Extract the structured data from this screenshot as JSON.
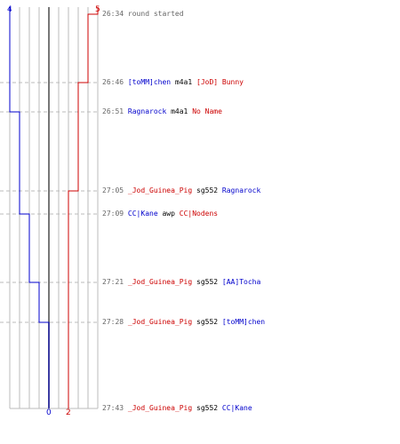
{
  "colors": {
    "blue_team": "#0000cc",
    "red_team": "#cc0000",
    "grid": "#bbbbbb",
    "center": "#777777",
    "dash": "#bbbbbb",
    "time": "#666666",
    "weapon": "#000000"
  },
  "scores": {
    "blue_start": "4",
    "red_start": "5",
    "blue_end": "0",
    "red_end": "2"
  },
  "events": [
    {
      "time": "26:34",
      "kind": "note",
      "text": "round started"
    },
    {
      "time": "26:46",
      "kind": "kill",
      "killer": "[toMM]chen",
      "killer_team": "blue",
      "weapon": "m4a1",
      "victim": "[JoD] Bunny",
      "victim_team": "red"
    },
    {
      "time": "26:51",
      "kind": "kill",
      "killer": "Ragnarock",
      "killer_team": "blue",
      "weapon": "m4a1",
      "victim": "No Name",
      "victim_team": "red"
    },
    {
      "time": "27:05",
      "kind": "kill",
      "killer": "_Jod_Guinea_Pig",
      "killer_team": "red",
      "weapon": "sg552",
      "victim": "Ragnarock",
      "victim_team": "blue"
    },
    {
      "time": "27:09",
      "kind": "kill",
      "killer": "CC|Kane",
      "killer_team": "blue",
      "weapon": "awp",
      "victim": "CC|Nodens",
      "victim_team": "red"
    },
    {
      "time": "27:21",
      "kind": "kill",
      "killer": "_Jod_Guinea_Pig",
      "killer_team": "red",
      "weapon": "sg552",
      "victim": "[AA]Tocha",
      "victim_team": "blue"
    },
    {
      "time": "27:28",
      "kind": "kill",
      "killer": "_Jod_Guinea_Pig",
      "killer_team": "red",
      "weapon": "sg552",
      "victim": "[toMM]chen",
      "victim_team": "blue"
    },
    {
      "time": "27:43",
      "kind": "kill",
      "killer": "_Jod_Guinea_Pig",
      "killer_team": "red",
      "weapon": "sg552",
      "victim": "CC|Kane",
      "victim_team": "blue"
    }
  ],
  "alive_steps": {
    "blue": [
      4,
      4,
      4,
      3,
      3,
      2,
      1,
      0
    ],
    "red": [
      5,
      4,
      3,
      3,
      2,
      2,
      2,
      2
    ]
  }
}
